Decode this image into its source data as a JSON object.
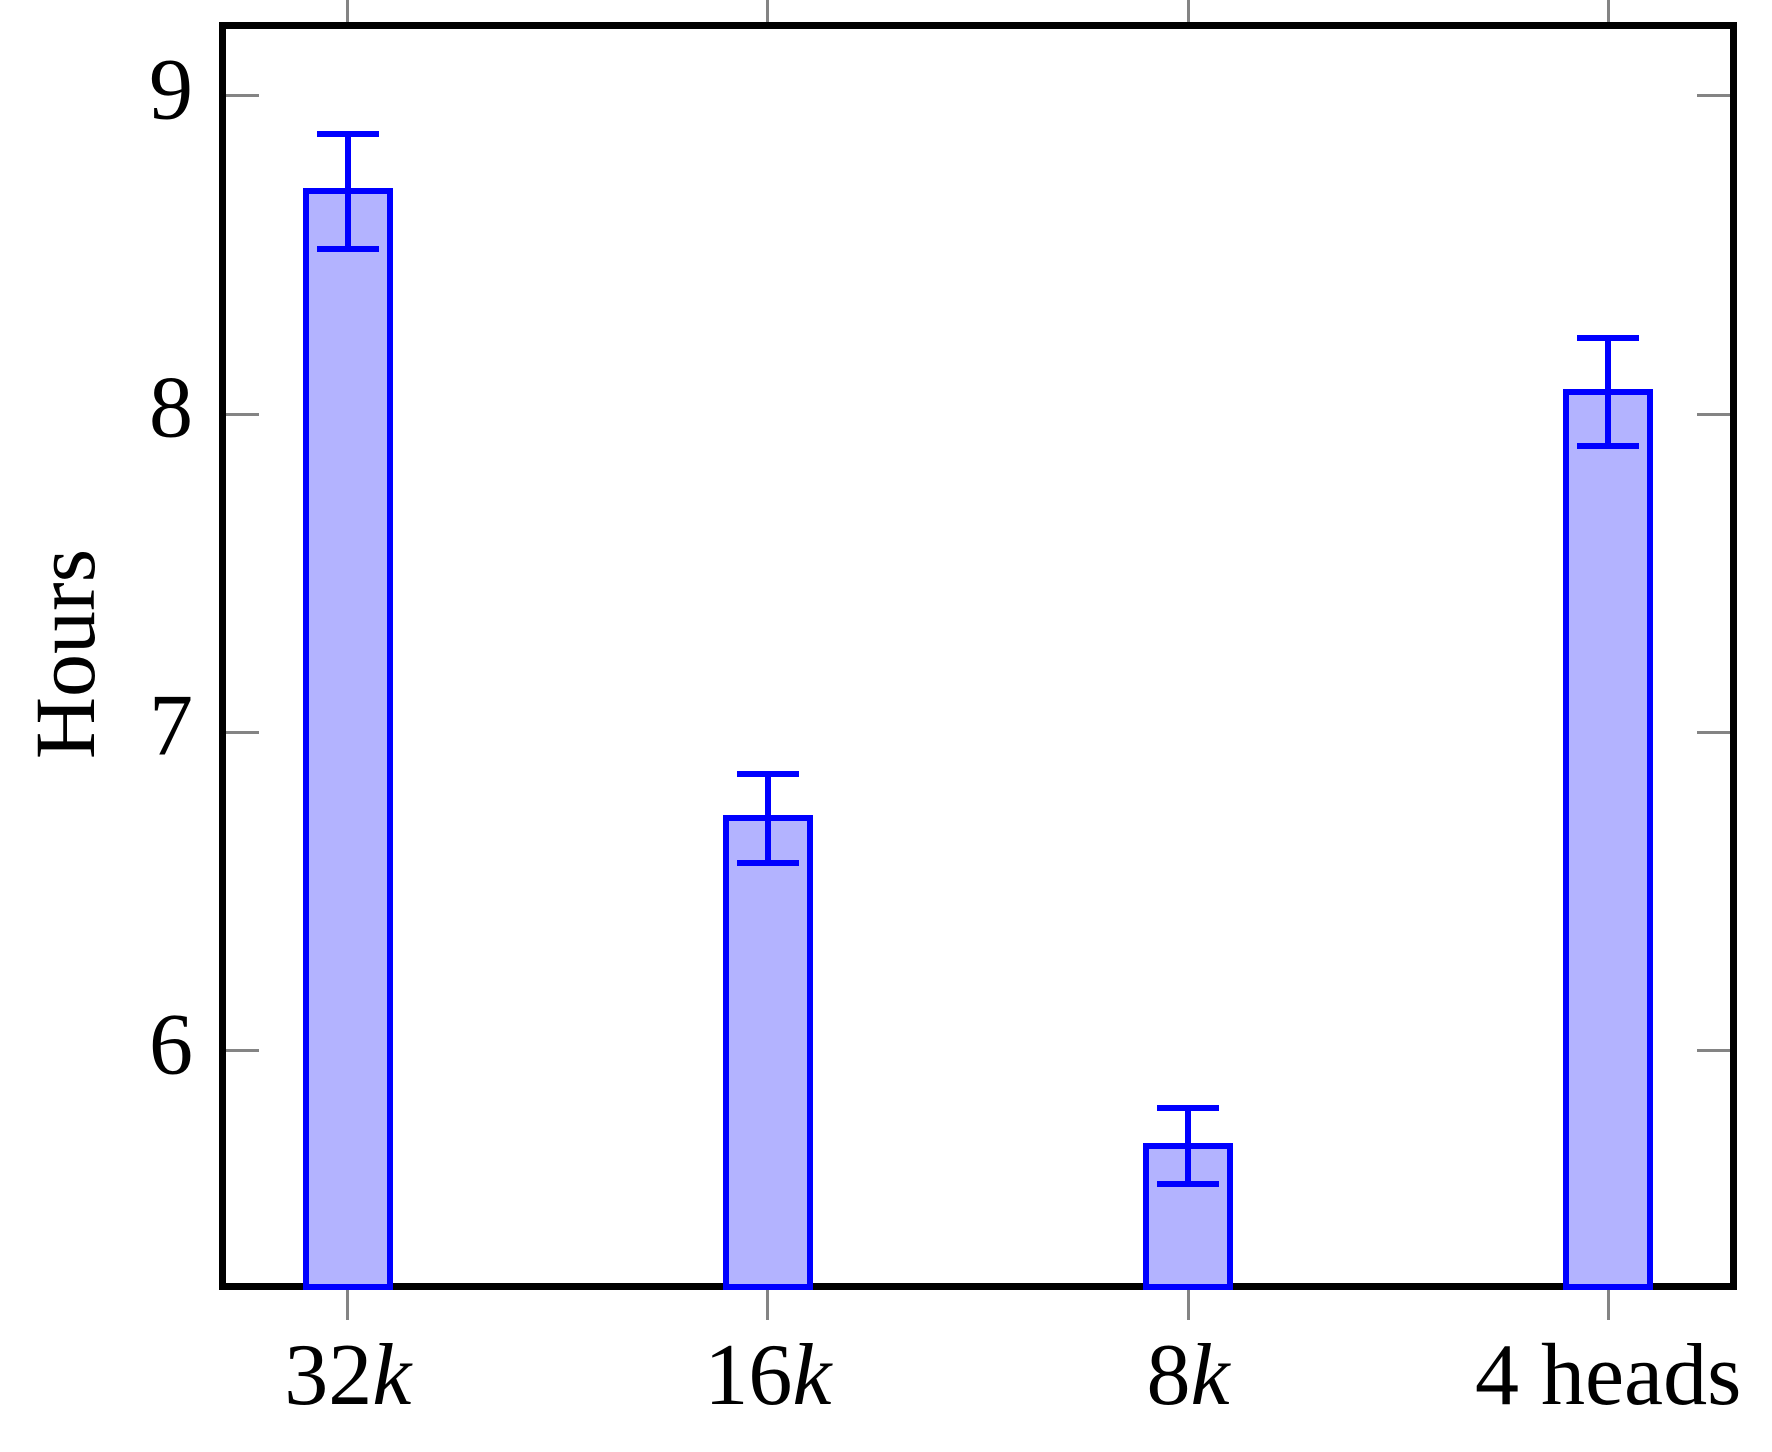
{
  "figure": {
    "background": "#ffffff"
  },
  "chart_data": {
    "type": "bar",
    "title": "",
    "xlabel": "",
    "ylabel": "Hours",
    "categories": [
      "32k",
      "16k",
      "8k",
      "4 heads"
    ],
    "category_label_parts": [
      [
        {
          "text": "32",
          "italic": false
        },
        {
          "text": "k",
          "italic": true
        }
      ],
      [
        {
          "text": "16",
          "italic": false
        },
        {
          "text": "k",
          "italic": true
        }
      ],
      [
        {
          "text": "8",
          "italic": false
        },
        {
          "text": "k",
          "italic": true
        }
      ],
      [
        {
          "text": "4 heads",
          "italic": false
        }
      ]
    ],
    "x_positions": [
      1,
      2,
      3,
      4
    ],
    "series": [
      {
        "name": "Hours",
        "values": [
          8.7,
          6.73,
          5.7,
          8.07
        ],
        "errors": [
          0.18,
          0.14,
          0.12,
          0.17
        ]
      }
    ],
    "error_bars": true,
    "yticks": [
      6,
      7,
      8,
      9
    ],
    "ylim": [
      5.27,
      9.21
    ],
    "xlim": [
      0.71,
      4.29
    ],
    "bar_width_units": 0.214,
    "grid": false,
    "legend_position": "none",
    "tick_style": {
      "x": "outside",
      "y": "inside"
    },
    "colors": {
      "bar_fill": "#b3b3ff",
      "bar_border": "#0000ff",
      "error_bar": "#0000ff",
      "axis_border": "#000000",
      "tick_mark": "#848484",
      "text": "#000000"
    }
  }
}
